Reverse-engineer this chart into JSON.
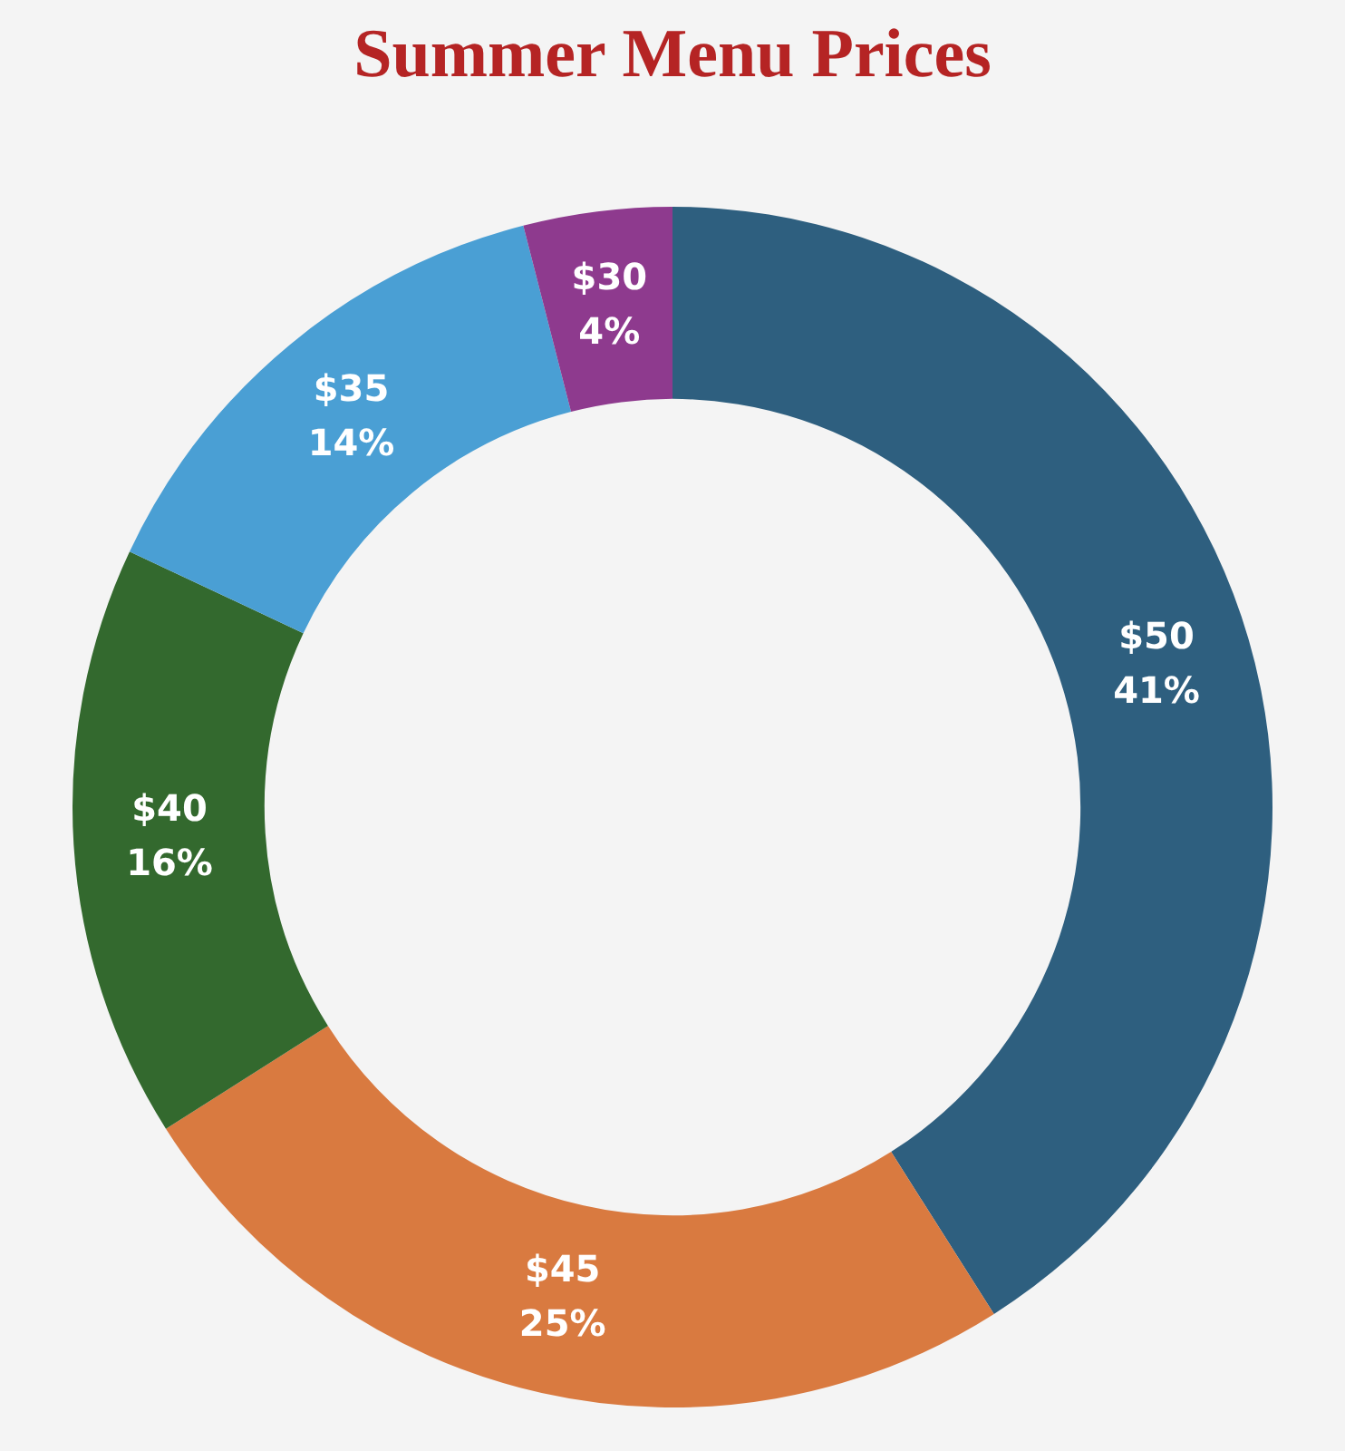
{
  "chart_data": {
    "type": "donut",
    "title": "Summer Menu Prices",
    "categories": [
      "$50",
      "$45",
      "$40",
      "$35",
      "$30"
    ],
    "values": [
      41,
      25,
      16,
      14,
      4
    ],
    "value_labels": [
      "41%",
      "25%",
      "16%",
      "14%",
      "4%"
    ],
    "colors": [
      "#2e5f7f",
      "#d97a40",
      "#33692e",
      "#4a9fd4",
      "#8e3a8e"
    ],
    "legend": false
  }
}
